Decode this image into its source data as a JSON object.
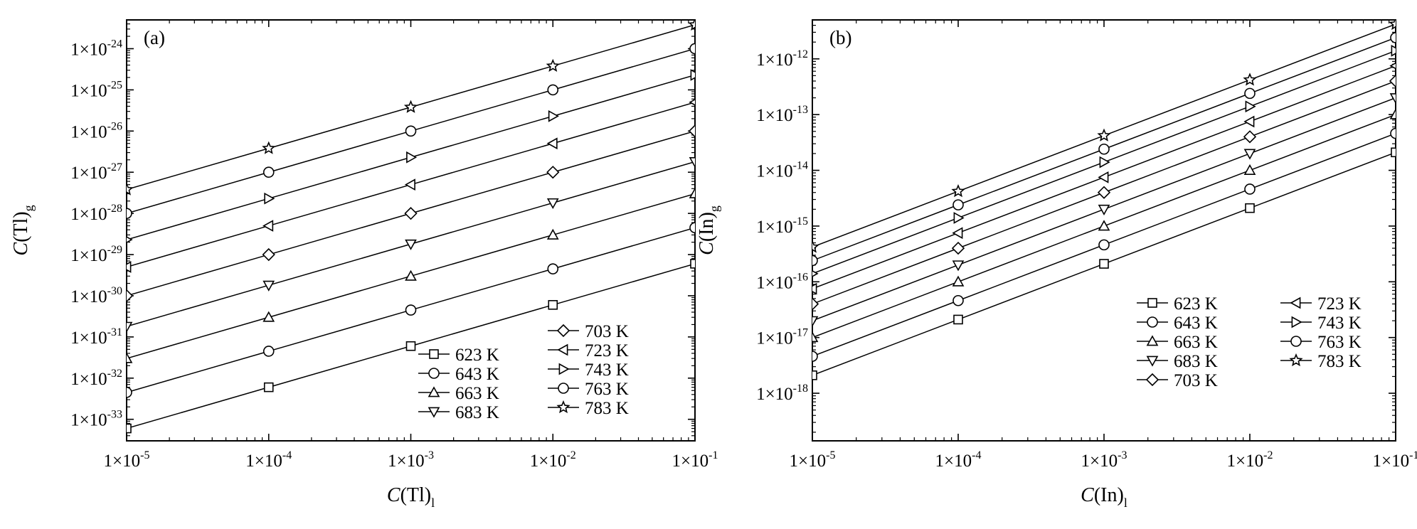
{
  "chart_data": [
    {
      "type": "line",
      "panel_label": "(a)",
      "xlabel": {
        "main": "C",
        "paren": "(Tl)",
        "sub": "l"
      },
      "ylabel": {
        "main": "C",
        "paren": "(Tl)",
        "sub": "g"
      },
      "x_scale": "log",
      "y_scale": "log",
      "xlim": [
        1e-05,
        0.1
      ],
      "ylim": [
        3e-34,
        5e-24
      ],
      "x_ticks": [
        1e-05,
        0.0001,
        0.001,
        0.01,
        0.1
      ],
      "y_ticks": [
        1e-33,
        1e-32,
        1e-31,
        1e-30,
        1e-29,
        1e-28,
        1e-27,
        1e-26,
        1e-25,
        1e-24
      ],
      "tick_prefix": "1×10",
      "x": [
        1e-05,
        0.0001,
        0.001,
        0.01,
        0.1
      ],
      "series": [
        {
          "name": "623 K",
          "marker": "square",
          "values": [
            6e-34,
            6e-33,
            6e-32,
            6e-31,
            6e-30
          ]
        },
        {
          "name": "643 K",
          "marker": "circle",
          "values": [
            4.5e-33,
            4.5e-32,
            4.5e-31,
            4.5e-30,
            4.5e-29
          ]
        },
        {
          "name": "663 K",
          "marker": "triangle-up",
          "values": [
            3e-32,
            3e-31,
            3e-30,
            3e-29,
            3e-28
          ]
        },
        {
          "name": "683 K",
          "marker": "triangle-down",
          "values": [
            1.8e-31,
            1.8e-30,
            1.8e-29,
            1.8e-28,
            1.8e-27
          ]
        },
        {
          "name": "703 K",
          "marker": "diamond",
          "values": [
            1e-30,
            1e-29,
            1e-28,
            1e-27,
            1e-26
          ]
        },
        {
          "name": "723 K",
          "marker": "triangle-left",
          "values": [
            5e-30,
            5e-29,
            5e-28,
            5e-27,
            5e-26
          ]
        },
        {
          "name": "743 K",
          "marker": "triangle-right",
          "values": [
            2.3e-29,
            2.3e-28,
            2.3e-27,
            2.3e-26,
            2.3e-25
          ]
        },
        {
          "name": "763 K",
          "marker": "circle",
          "values": [
            1e-28,
            1e-27,
            1e-26,
            1e-25,
            1e-24
          ]
        },
        {
          "name": "783 K",
          "marker": "star",
          "values": [
            3.8e-28,
            3.8e-27,
            3.8e-26,
            3.8e-25,
            3.8e-24
          ]
        }
      ],
      "legend_placement": "bottom-right",
      "grid": false
    },
    {
      "type": "line",
      "panel_label": "(b)",
      "xlabel": {
        "main": "C",
        "paren": "(In)",
        "sub": "l"
      },
      "ylabel": {
        "main": "C",
        "paren": "(In)",
        "sub": "g"
      },
      "x_scale": "log",
      "y_scale": "log",
      "xlim": [
        1e-05,
        0.1
      ],
      "ylim": [
        1.4e-19,
        5e-12
      ],
      "x_ticks": [
        1e-05,
        0.0001,
        0.001,
        0.01,
        0.1
      ],
      "y_ticks": [
        1e-18,
        1e-17,
        1e-16,
        1e-15,
        1e-14,
        1e-13,
        1e-12
      ],
      "tick_prefix": "1×10",
      "x": [
        1e-05,
        0.0001,
        0.001,
        0.01,
        0.1
      ],
      "series": [
        {
          "name": "623 K",
          "marker": "square",
          "values": [
            2.1e-18,
            2.1e-17,
            2.1e-16,
            2.1e-15,
            2.1e-14
          ]
        },
        {
          "name": "643 K",
          "marker": "circle",
          "values": [
            4.6e-18,
            4.6e-17,
            4.6e-16,
            4.6e-15,
            4.6e-14
          ]
        },
        {
          "name": "663 K",
          "marker": "triangle-up",
          "values": [
            1e-17,
            1e-16,
            1e-15,
            1e-14,
            1e-13
          ]
        },
        {
          "name": "683 K",
          "marker": "triangle-down",
          "values": [
            2e-17,
            2e-16,
            2e-15,
            2e-14,
            2e-13
          ]
        },
        {
          "name": "703 K",
          "marker": "diamond",
          "values": [
            4e-17,
            4e-16,
            4e-15,
            4e-14,
            4e-13
          ]
        },
        {
          "name": "723 K",
          "marker": "triangle-left",
          "values": [
            7.5e-17,
            7.5e-16,
            7.5e-15,
            7.5e-14,
            7.5e-13
          ]
        },
        {
          "name": "743 K",
          "marker": "triangle-right",
          "values": [
            1.4e-16,
            1.4e-15,
            1.4e-14,
            1.4e-13,
            1.4e-12
          ]
        },
        {
          "name": "763 K",
          "marker": "circle",
          "values": [
            2.4e-16,
            2.4e-15,
            2.4e-14,
            2.4e-13,
            2.4e-12
          ]
        },
        {
          "name": "783 K",
          "marker": "star",
          "values": [
            4.2e-16,
            4.2e-15,
            4.2e-14,
            4.2e-13,
            4.2e-12
          ]
        }
      ],
      "legend_placement": "bottom-right",
      "grid": false
    }
  ]
}
